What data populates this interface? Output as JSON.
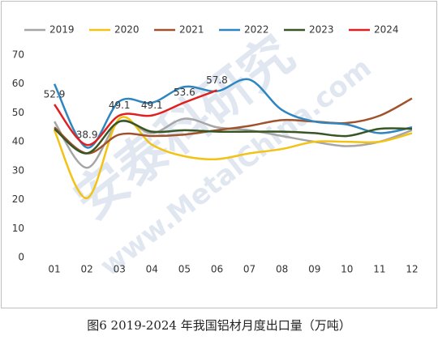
{
  "chart_data": {
    "type": "line",
    "caption": "图6 2019-2024 年我国铝材月度出口量（万吨）",
    "watermark": [
      "安泰科研究",
      "www.MetalChina.com"
    ],
    "categories": [
      "01",
      "02",
      "03",
      "04",
      "05",
      "06",
      "07",
      "08",
      "09",
      "10",
      "11",
      "12"
    ],
    "series": [
      {
        "name": "2019",
        "color": "#a6a6a6",
        "values": [
          47,
          31,
          47,
          43,
          48,
          45,
          44,
          42,
          40,
          38.5,
          40,
          44
        ]
      },
      {
        "name": "2020",
        "color": "#f2c314",
        "values": [
          44,
          20.5,
          48,
          39,
          35,
          34,
          36,
          37.5,
          40,
          40,
          40,
          43
        ]
      },
      {
        "name": "2021",
        "color": "#a0522d",
        "values": [
          45,
          36,
          42.5,
          42,
          42.5,
          44,
          45.5,
          47.5,
          47,
          46.5,
          49,
          55
        ]
      },
      {
        "name": "2022",
        "color": "#2e86c1",
        "values": [
          60,
          38,
          54,
          53.5,
          59,
          57.5,
          61.5,
          51,
          47,
          46,
          43,
          45
        ]
      },
      {
        "name": "2023",
        "color": "#375623",
        "values": [
          44.5,
          36,
          47,
          43.5,
          44,
          43.5,
          43.5,
          43.5,
          43,
          42,
          44.5,
          44.5
        ]
      },
      {
        "name": "2024",
        "color": "#e02020",
        "values": [
          52.9,
          38.9,
          49.1,
          49.1,
          53.6,
          57.8,
          null,
          null,
          null,
          null,
          null,
          null
        ],
        "show_labels": true
      }
    ],
    "ylim": [
      0,
      70
    ],
    "yticks": [
      0,
      10,
      20,
      30,
      40,
      50,
      60,
      70
    ],
    "grid": false,
    "legend": "top"
  }
}
